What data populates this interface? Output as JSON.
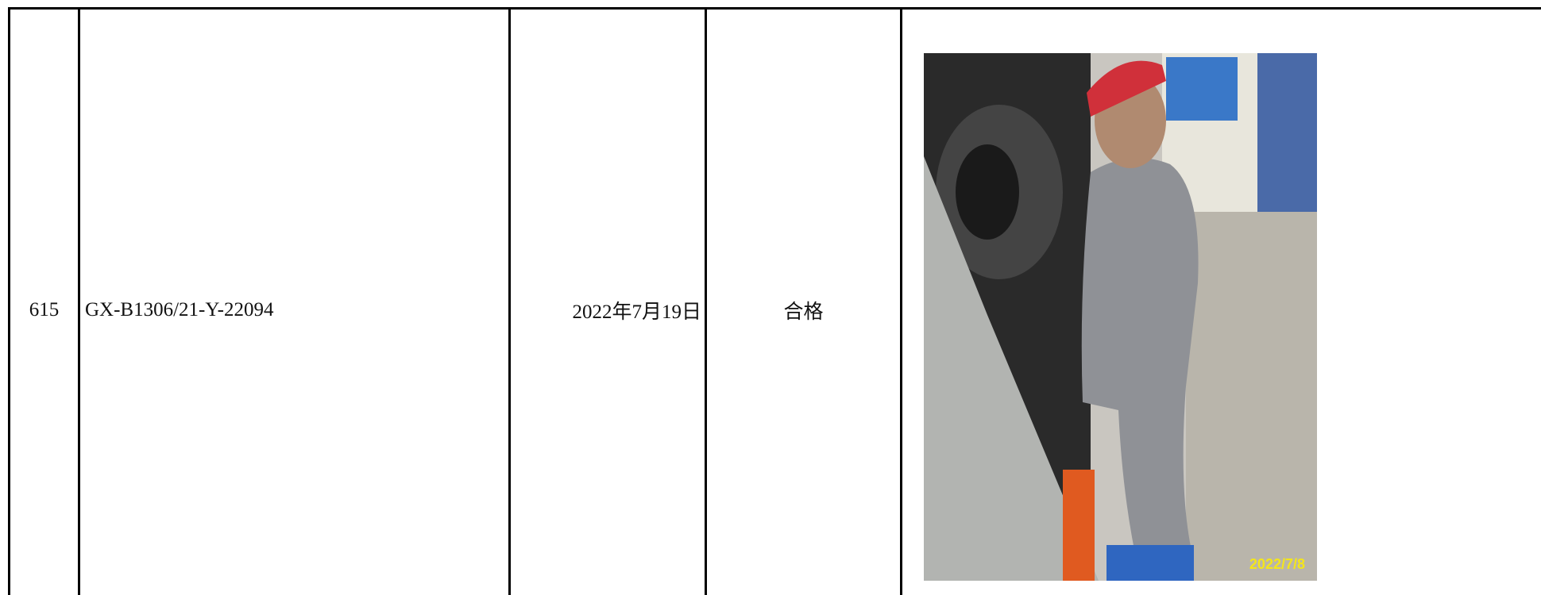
{
  "table": {
    "rows": [
      [
        "615",
        "GX-B1306/21-Y-22094",
        "2022年7月19日",
        "合格"
      ]
    ]
  },
  "photo": {
    "timestamp": "2022/7/8"
  }
}
